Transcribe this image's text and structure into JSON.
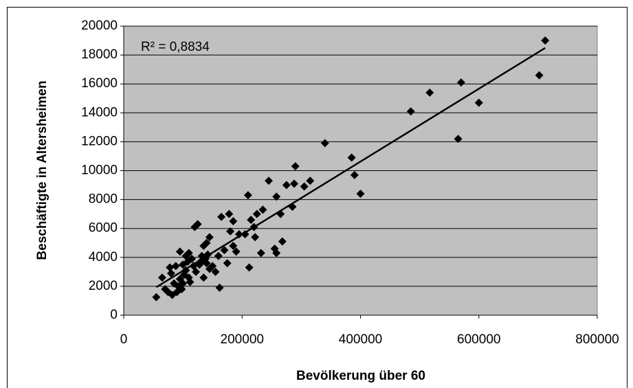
{
  "chart_data": {
    "type": "scatter",
    "xlabel": "Bevölkerung über 60",
    "ylabel": "Beschäftigte in Altersheimen",
    "annotation": "R² = 0,8834",
    "color": "#000000",
    "plot_background": "#c0c0c0",
    "trendline": true,
    "grid": true,
    "xlim": [
      0,
      800000
    ],
    "xticks": [
      0,
      200000,
      400000,
      600000,
      800000
    ],
    "ylim": [
      0,
      20000
    ],
    "yticks": [
      0,
      2000,
      4000,
      6000,
      8000,
      10000,
      12000,
      14000,
      16000,
      18000,
      20000
    ],
    "x": [
      55000,
      65000,
      70000,
      75000,
      78000,
      80000,
      82000,
      85000,
      88000,
      90000,
      92000,
      95000,
      95000,
      98000,
      100000,
      100000,
      102000,
      105000,
      105000,
      108000,
      110000,
      110000,
      112000,
      115000,
      118000,
      120000,
      122000,
      125000,
      128000,
      130000,
      132000,
      135000,
      135000,
      138000,
      140000,
      140000,
      142000,
      145000,
      145000,
      150000,
      155000,
      160000,
      162000,
      165000,
      170000,
      175000,
      178000,
      180000,
      185000,
      185000,
      190000,
      195000,
      205000,
      210000,
      212000,
      215000,
      220000,
      222000,
      225000,
      232000,
      235000,
      245000,
      255000,
      258000,
      258000,
      265000,
      268000,
      275000,
      285000,
      288000,
      290000,
      305000,
      315000,
      340000,
      385000,
      390000,
      400000,
      485000,
      517000,
      565000,
      570000,
      600000,
      702000,
      712000
    ],
    "y": [
      1250,
      2600,
      1800,
      1600,
      3300,
      2900,
      1400,
      2200,
      3400,
      1600,
      2000,
      2500,
      4400,
      1800,
      3500,
      2200,
      2800,
      3100,
      4100,
      3700,
      2600,
      4300,
      2300,
      3900,
      3400,
      6100,
      3000,
      6300,
      3500,
      3700,
      4100,
      2600,
      4800,
      3900,
      5000,
      3600,
      4200,
      5400,
      3200,
      3400,
      3000,
      4100,
      1900,
      6800,
      4500,
      3600,
      7000,
      5800,
      6500,
      4800,
      4400,
      5600,
      5600,
      8300,
      3300,
      6600,
      6100,
      5400,
      7000,
      4300,
      7300,
      9300,
      4600,
      4300,
      8200,
      7000,
      5100,
      9000,
      7500,
      9100,
      10300,
      8900,
      9300,
      11900,
      10900,
      9700,
      8400,
      14100,
      15400,
      12200,
      16100,
      14700,
      16600,
      19000
    ]
  }
}
